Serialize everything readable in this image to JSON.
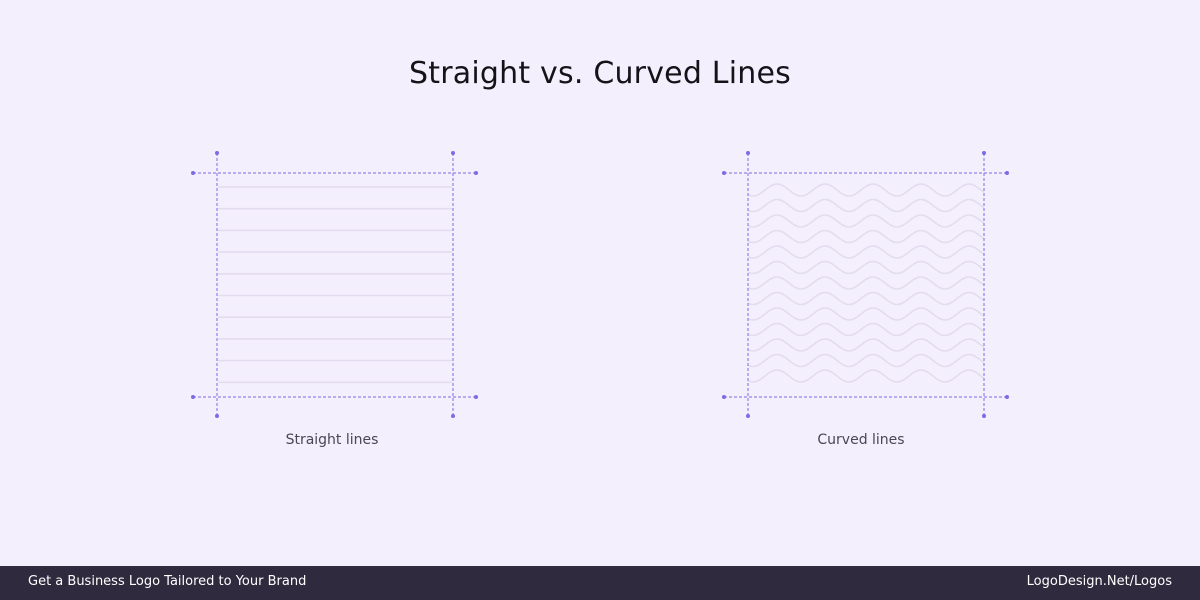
{
  "title": "Straight vs. Curved Lines",
  "panels": {
    "straight": {
      "caption": "Straight lines"
    },
    "curved": {
      "caption": "Curved lines"
    }
  },
  "footer": {
    "tagline": "Get a Business Logo Tailored to Your Brand",
    "link": "LogoDesign.Net/Logos"
  },
  "colors": {
    "background": "#f4effd",
    "guide": "#7a6ce6",
    "pattern": "#e3dcef",
    "footer_bg": "#302a3e",
    "footer_text": "#ffffff"
  }
}
